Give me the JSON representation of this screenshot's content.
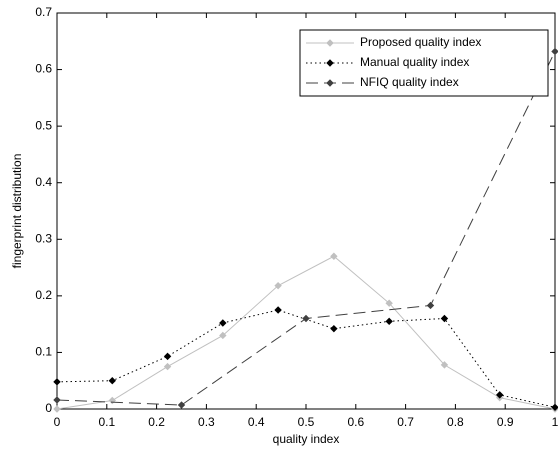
{
  "chart_data": {
    "type": "line",
    "xlabel": "quality index",
    "ylabel": "fingerprint distribution",
    "xlim": [
      0,
      1
    ],
    "ylim": [
      0,
      0.7
    ],
    "xticks": [
      0,
      0.1,
      0.2,
      0.3,
      0.4,
      0.5,
      0.6,
      0.7,
      0.8,
      0.9,
      1
    ],
    "yticks": [
      0,
      0.1,
      0.2,
      0.3,
      0.4,
      0.5,
      0.6,
      0.7
    ],
    "grid": false,
    "legend": "upper right",
    "series": [
      {
        "name": "Proposed quality index",
        "color": "#c0c0c0",
        "dash": "solid",
        "marker": "diamond",
        "x": [
          0,
          0.111,
          0.222,
          0.333,
          0.444,
          0.556,
          0.667,
          0.778,
          0.889,
          1
        ],
        "values": [
          0,
          0.015,
          0.075,
          0.13,
          0.218,
          0.27,
          0.187,
          0.078,
          0.02,
          0
        ]
      },
      {
        "name": "Manual quality index",
        "color": "#000000",
        "dash": "dotted",
        "marker": "diamond",
        "x": [
          0,
          0.111,
          0.222,
          0.333,
          0.444,
          0.556,
          0.667,
          0.778,
          0.889,
          1
        ],
        "values": [
          0.048,
          0.05,
          0.093,
          0.152,
          0.175,
          0.142,
          0.155,
          0.16,
          0.025,
          0.003
        ]
      },
      {
        "name": "NFIQ quality index",
        "color": "#404040",
        "dash": "dashed",
        "marker": "diamond",
        "x": [
          0,
          0.25,
          0.5,
          0.75,
          1
        ],
        "values": [
          0.016,
          0.007,
          0.16,
          0.183,
          0.632
        ]
      }
    ]
  }
}
